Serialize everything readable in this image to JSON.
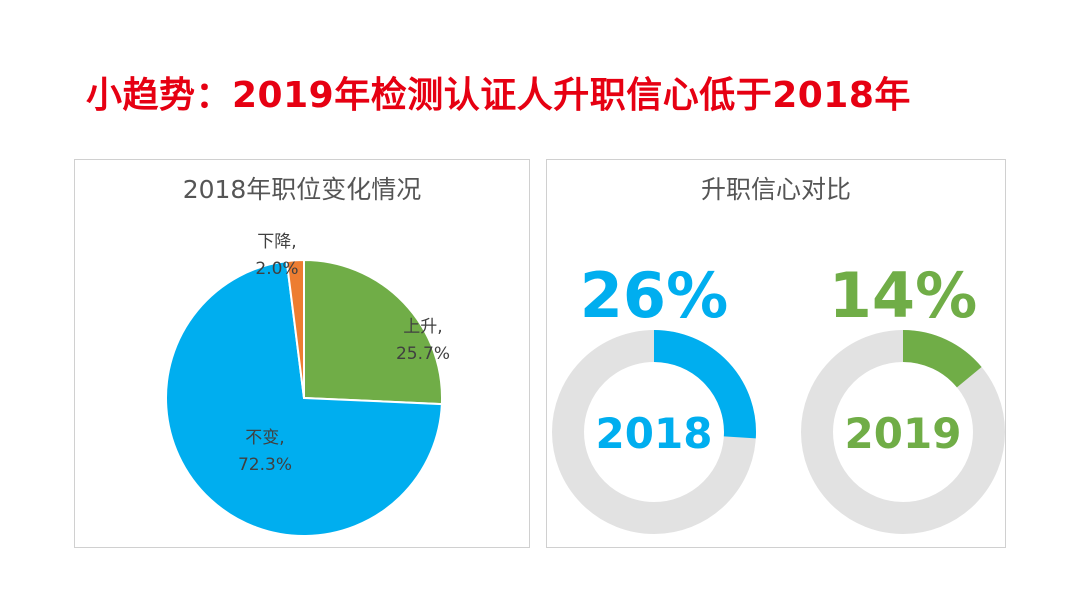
{
  "headline": "小趋势：2019年检测认证人升职信心低于2018年",
  "colors": {
    "headline": "#e60012",
    "blue": "#00aeef",
    "green": "#70ad47",
    "orange": "#ed7d31",
    "ring_background": "#e2e2e2",
    "label_text": "#404040"
  },
  "chart_data": [
    {
      "type": "pie",
      "title": "2018年职位变化情况",
      "slices": [
        {
          "name": "上升",
          "value": 25.7,
          "label": "25.7%",
          "color": "#70ad47"
        },
        {
          "name": "不变",
          "value": 72.3,
          "label": "72.3%",
          "color": "#00aeef"
        },
        {
          "name": "下降",
          "value": 2.0,
          "label": "2.0%",
          "color": "#ed7d31"
        }
      ]
    },
    {
      "type": "donut",
      "title": "升职信心对比",
      "items": [
        {
          "category": "2018",
          "value": 26,
          "value_label": "26%",
          "color": "#00aeef"
        },
        {
          "category": "2019",
          "value": 14,
          "value_label": "14%",
          "color": "#70ad47"
        }
      ]
    }
  ]
}
